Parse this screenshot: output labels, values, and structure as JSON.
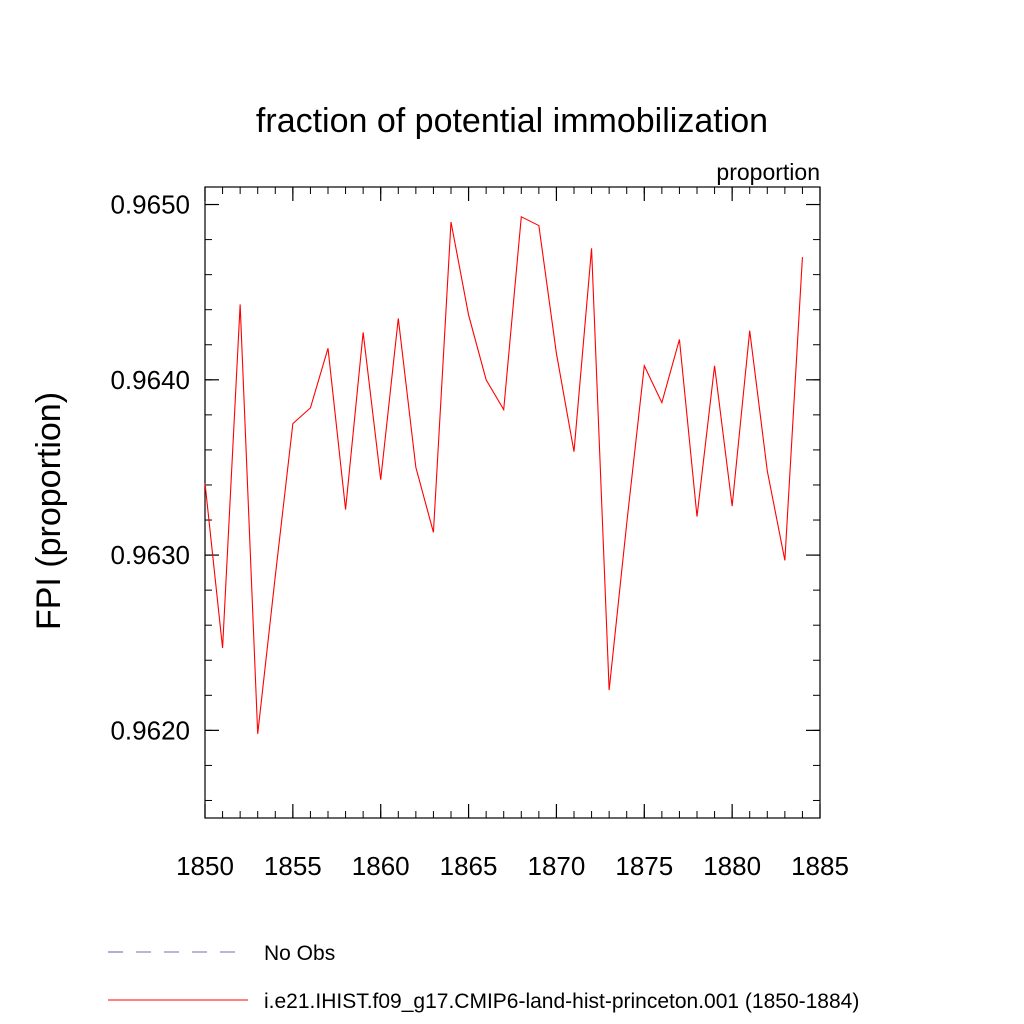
{
  "chart_data": {
    "type": "line",
    "title": "fraction of potential immobilization",
    "units_label": "proportion",
    "ylabel": "FPI  (proportion)",
    "xlabel": "",
    "xlim": [
      1850,
      1885
    ],
    "ylim": [
      0.9615,
      0.9651
    ],
    "x_ticks": [
      1850,
      1855,
      1860,
      1865,
      1870,
      1875,
      1880,
      1885
    ],
    "x_tick_labels": [
      "1850",
      "1855",
      "1860",
      "1865",
      "1870",
      "1875",
      "1880",
      "1885"
    ],
    "y_ticks": [
      0.962,
      0.963,
      0.964,
      0.965
    ],
    "y_tick_labels": [
      "0.9620",
      "0.9630",
      "0.9640",
      "0.9650"
    ],
    "y_minor_step": 0.0002,
    "x_minor_step": 1,
    "grid": false,
    "legend_position": "bottom",
    "series": [
      {
        "name": "i.e21.IHIST.f09_g17.CMIP6-land-hist-princeton.001 (1850-1884)",
        "color": "#ff0000",
        "dash": "solid",
        "x": [
          1850,
          1851,
          1852,
          1853,
          1854,
          1855,
          1856,
          1857,
          1858,
          1859,
          1860,
          1861,
          1862,
          1863,
          1864,
          1865,
          1866,
          1867,
          1868,
          1869,
          1870,
          1871,
          1872,
          1873,
          1874,
          1875,
          1876,
          1877,
          1878,
          1879,
          1880,
          1881,
          1882,
          1883,
          1884
        ],
        "values": [
          0.96341,
          0.96247,
          0.96443,
          0.96198,
          0.96288,
          0.96375,
          0.96384,
          0.96418,
          0.96326,
          0.96427,
          0.96343,
          0.96435,
          0.9635,
          0.96313,
          0.9649,
          0.96437,
          0.964,
          0.96383,
          0.96493,
          0.96488,
          0.96415,
          0.96359,
          0.96475,
          0.96223,
          0.96318,
          0.96408,
          0.96387,
          0.96423,
          0.96322,
          0.96408,
          0.96328,
          0.96428,
          0.96348,
          0.96297,
          0.9647
        ]
      }
    ],
    "legend": [
      {
        "label": "No Obs",
        "color": "#7b68b0",
        "dash": "dashed"
      },
      {
        "label": "i.e21.IHIST.f09_g17.CMIP6-land-hist-princeton.001 (1850-1884)",
        "color": "#ff0000",
        "dash": "solid"
      }
    ]
  }
}
